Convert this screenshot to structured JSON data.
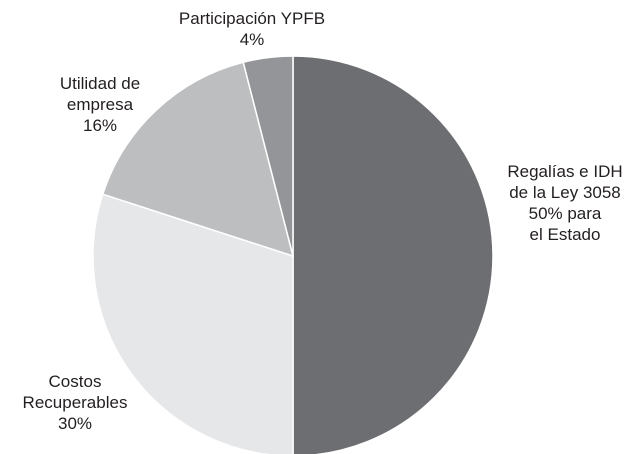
{
  "chart_data": {
    "type": "pie",
    "categories": [
      "Regalías e IDH de la Ley 3058",
      "Costos Recuperables",
      "Utilidad de empresa",
      "Participación YPFB"
    ],
    "values": [
      50,
      30,
      16,
      4
    ],
    "value_labels": [
      "50% para el Estado",
      "30%",
      "16%",
      "4%"
    ],
    "colors": [
      "#6d6e71",
      "#e6e7e8",
      "#bcbec0",
      "#939598"
    ]
  }
}
